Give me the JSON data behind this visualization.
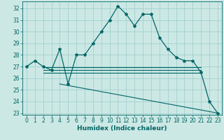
{
  "title": "",
  "xlabel": "Humidex (Indice chaleur)",
  "bg_color": "#cce8e4",
  "grid_color": "#99cccc",
  "line_color": "#006666",
  "x": [
    0,
    1,
    2,
    3,
    4,
    5,
    6,
    7,
    8,
    9,
    10,
    11,
    12,
    13,
    14,
    15,
    16,
    17,
    18,
    19,
    20,
    21,
    22,
    23
  ],
  "y_main": [
    27.0,
    27.5,
    27.0,
    26.7,
    28.5,
    25.5,
    28.0,
    28.0,
    29.0,
    30.0,
    31.0,
    32.2,
    31.5,
    30.5,
    31.5,
    31.5,
    29.5,
    28.5,
    27.8,
    27.5,
    27.5,
    26.5,
    24.0,
    23.0
  ],
  "flat_x1": 2,
  "flat_x2": 21,
  "flat_y1": 26.95,
  "flat_y2": 26.7,
  "flat_y3": 26.45,
  "diag_x1": 4,
  "diag_x2": 23,
  "diag_y1": 25.5,
  "diag_y2": 23.0,
  "ylim_min": 22.85,
  "ylim_max": 32.6,
  "xlim_min": -0.5,
  "xlim_max": 23.5,
  "yticks": [
    23,
    24,
    25,
    26,
    27,
    28,
    29,
    30,
    31,
    32
  ],
  "xticks": [
    0,
    1,
    2,
    3,
    4,
    5,
    6,
    7,
    8,
    9,
    10,
    11,
    12,
    13,
    14,
    15,
    16,
    17,
    18,
    19,
    20,
    21,
    22,
    23
  ],
  "tick_fontsize": 5.5,
  "xlabel_fontsize": 6.5
}
